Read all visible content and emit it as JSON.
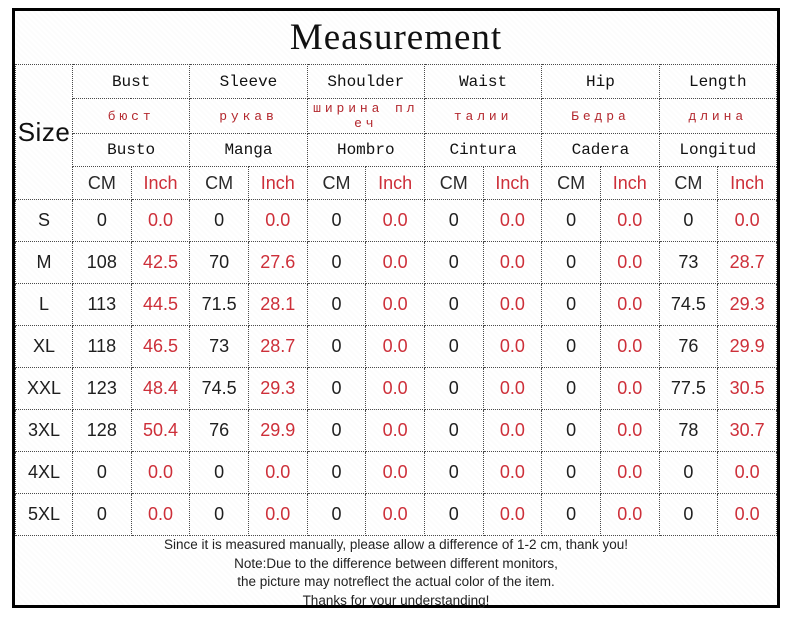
{
  "title": "Measurement",
  "size_label": "Size",
  "units": {
    "cm": "CM",
    "inch": "Inch"
  },
  "colors": {
    "accent_red": "#cd2f39",
    "russian_red": "#b3282e",
    "text_black": "#1a1a1a",
    "border": "#4a4a4a"
  },
  "columns": [
    {
      "en": "Bust",
      "ru": "бюст",
      "es": "Busto"
    },
    {
      "en": "Sleeve",
      "ru": "рукав",
      "es": "Manga"
    },
    {
      "en": "Shoulder",
      "ru": "ширина пл\nеч",
      "es": "Hombro"
    },
    {
      "en": "Waist",
      "ru": "талии",
      "es": "Cintura"
    },
    {
      "en": "Hip",
      "ru": "Бедра",
      "es": "Cadera"
    },
    {
      "en": "Length",
      "ru": "длина",
      "es": "Longitud"
    }
  ],
  "rows": [
    {
      "size": "S",
      "values": [
        "0",
        "0.0",
        "0",
        "0.0",
        "0",
        "0.0",
        "0",
        "0.0",
        "0",
        "0.0",
        "0",
        "0.0"
      ]
    },
    {
      "size": "M",
      "values": [
        "108",
        "42.5",
        "70",
        "27.6",
        "0",
        "0.0",
        "0",
        "0.0",
        "0",
        "0.0",
        "73",
        "28.7"
      ]
    },
    {
      "size": "L",
      "values": [
        "113",
        "44.5",
        "71.5",
        "28.1",
        "0",
        "0.0",
        "0",
        "0.0",
        "0",
        "0.0",
        "74.5",
        "29.3"
      ]
    },
    {
      "size": "XL",
      "values": [
        "118",
        "46.5",
        "73",
        "28.7",
        "0",
        "0.0",
        "0",
        "0.0",
        "0",
        "0.0",
        "76",
        "29.9"
      ]
    },
    {
      "size": "XXL",
      "values": [
        "123",
        "48.4",
        "74.5",
        "29.3",
        "0",
        "0.0",
        "0",
        "0.0",
        "0",
        "0.0",
        "77.5",
        "30.5"
      ]
    },
    {
      "size": "3XL",
      "values": [
        "128",
        "50.4",
        "76",
        "29.9",
        "0",
        "0.0",
        "0",
        "0.0",
        "0",
        "0.0",
        "78",
        "30.7"
      ]
    },
    {
      "size": "4XL",
      "values": [
        "0",
        "0.0",
        "0",
        "0.0",
        "0",
        "0.0",
        "0",
        "0.0",
        "0",
        "0.0",
        "0",
        "0.0"
      ]
    },
    {
      "size": "5XL",
      "values": [
        "0",
        "0.0",
        "0",
        "0.0",
        "0",
        "0.0",
        "0",
        "0.0",
        "0",
        "0.0",
        "0",
        "0.0"
      ]
    }
  ],
  "notes": [
    "Since it is measured manually, please allow a difference of 1-2 cm, thank you!",
    "Note:Due to the difference between different monitors,",
    "the picture may notreflect the actual color of the item.",
    "Thanks for your understanding!"
  ]
}
